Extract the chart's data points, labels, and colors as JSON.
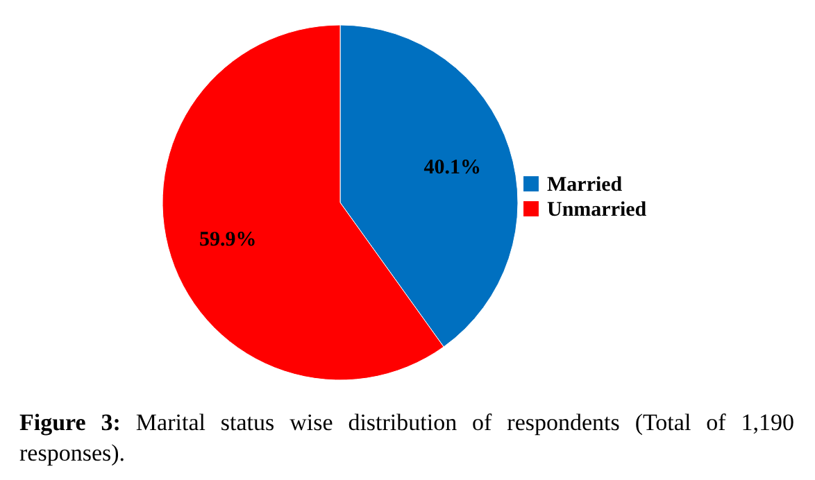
{
  "chart_data": {
    "type": "pie",
    "categories": [
      "Married",
      "Unmarried"
    ],
    "values": [
      40.1,
      59.9
    ],
    "colors": [
      "#0070c0",
      "#ff0000"
    ],
    "value_labels": [
      "40.1%",
      "59.9%"
    ],
    "legend": "right",
    "annotations": [
      "Figure 3: Marital status wise distribution of respondents (Total of 1,190 responses)."
    ]
  }
}
